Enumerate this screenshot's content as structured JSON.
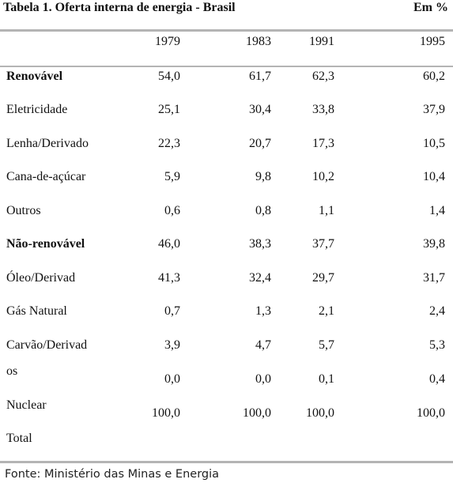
{
  "table": {
    "title": "Tabela 1. Oferta interna de energia - Brasil",
    "unit": "Em %",
    "years": [
      "1979",
      "1983",
      "1991",
      "1995"
    ],
    "rows": [
      {
        "label": "Renovável",
        "values": [
          "54,0",
          "61,7",
          "62,3",
          "60,2"
        ]
      },
      {
        "label": "Eletricidade",
        "values": [
          "25,1",
          "30,4",
          "33,8",
          "37,9"
        ]
      },
      {
        "label": "Lenha/Derivado",
        "values": [
          "22,3",
          "20,7",
          "17,3",
          "10,5"
        ]
      },
      {
        "label": "Cana-de-açúcar",
        "values": [
          "5,9",
          "9,8",
          "10,2",
          "10,4"
        ]
      },
      {
        "label": "Outros",
        "values": [
          "0,6",
          "0,8",
          "1,1",
          "1,4"
        ]
      },
      {
        "label": "Não-renovável",
        "values": [
          "46,0",
          "38,3",
          "37,7",
          "39,8"
        ]
      },
      {
        "label": "Óleo/Derivad",
        "values": [
          "41,3",
          "32,4",
          "29,7",
          "31,7"
        ]
      },
      {
        "label": "Gás Natural",
        "values": [
          "0,7",
          "1,3",
          "2,1",
          "2,4"
        ]
      },
      {
        "label": "Carvão/Derivad",
        "values": [
          "3,9",
          "4,7",
          "5,7",
          "5,3"
        ]
      },
      {
        "label": "os",
        "values": [
          "0,0",
          "0,0",
          "0,1",
          "0,4"
        ]
      },
      {
        "label": "Nuclear",
        "values": [
          "100,0",
          "100,0",
          "100,0",
          "100,0"
        ]
      },
      {
        "label": "Total",
        "values": []
      }
    ],
    "source": "Fonte: Ministério das Minas e Energia"
  }
}
